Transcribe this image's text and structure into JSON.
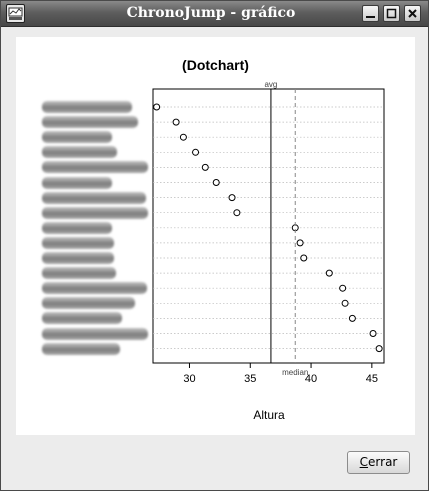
{
  "window": {
    "title": "ChronoJump - gráfico",
    "icon": "chronojump-app-icon",
    "controls": [
      "minimize-icon",
      "maximize-icon",
      "close-icon"
    ]
  },
  "footer": {
    "close_button": {
      "mnemonic": "C",
      "rest": "errar"
    }
  },
  "chart_data": {
    "type": "scatter",
    "title": "(Dotchart)",
    "xlabel": "Altura",
    "ylabel": "",
    "xlim": [
      27,
      46
    ],
    "xticks": [
      30,
      35,
      40,
      45
    ],
    "tick_labels": [
      "30",
      "35",
      "40",
      "45"
    ],
    "row_labels_obscured": true,
    "values": [
      27.3,
      28.9,
      29.5,
      30.5,
      31.3,
      32.2,
      33.5,
      33.9,
      38.7,
      39.1,
      39.4,
      41.5,
      42.6,
      42.8,
      43.4,
      45.1,
      45.6
    ],
    "reference_lines": [
      {
        "label": "avg",
        "value": 36.7,
        "style": "solid",
        "position": "top"
      },
      {
        "label": "median",
        "value": 38.7,
        "style": "dashed",
        "position": "bottom"
      }
    ],
    "colors": {
      "grid": "#bbbbbb",
      "point": "#000000",
      "median_line": "#888888"
    }
  }
}
